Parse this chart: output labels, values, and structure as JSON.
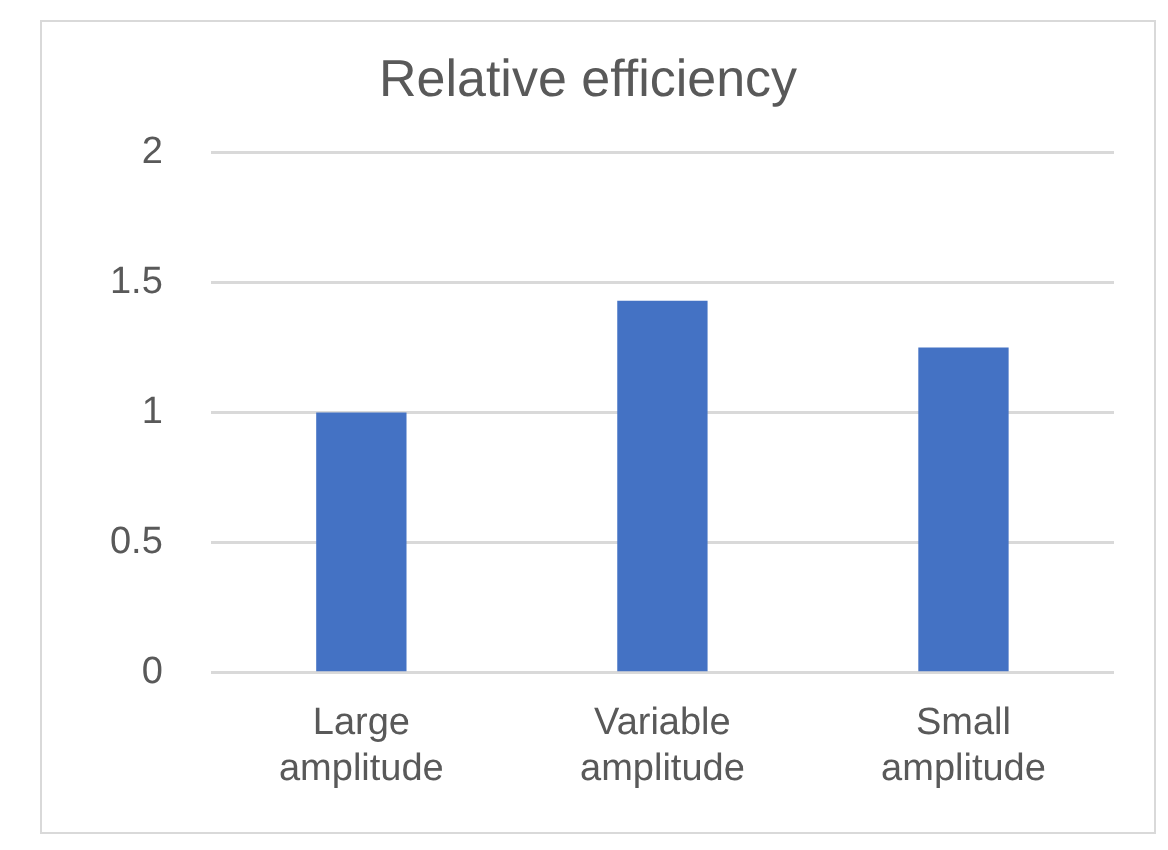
{
  "chart_data": {
    "type": "bar",
    "title": "Relative efficiency",
    "categories": [
      "Large amplitude",
      "Variable amplitude",
      "Small amplitude"
    ],
    "values": [
      1.0,
      1.43,
      1.25
    ],
    "color": "#4472c4",
    "ylim": [
      0,
      2
    ],
    "yticks": [
      0,
      0.5,
      1,
      1.5,
      2
    ],
    "grid": "y",
    "legend": false
  }
}
